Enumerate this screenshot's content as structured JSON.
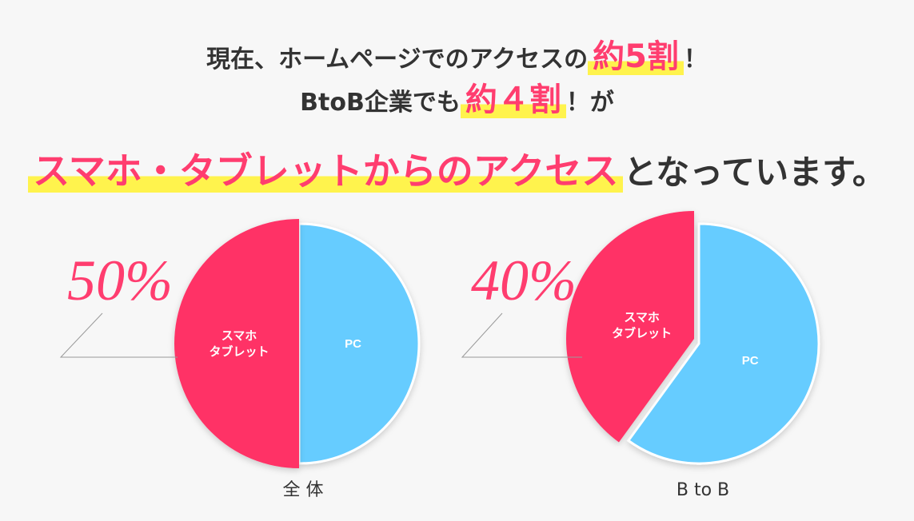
{
  "headline": {
    "line1_pre": "現在、ホームページでのアクセスの",
    "line1_em": "約5割",
    "line1_post": "！",
    "line2_pre": "BtoB企業でも",
    "line2_em": "約４割",
    "line2_post": "！が",
    "line3_em": "スマホ・タブレットからのアクセス",
    "line3_post": "となっています。"
  },
  "colors": {
    "mobile": "#ff3366",
    "pc": "#66ccff",
    "accent": "#ff3d6f",
    "highlight": "#fff34d"
  },
  "chart_data": [
    {
      "type": "pie",
      "title": "全 体",
      "percent_label": "50%",
      "slices": [
        {
          "name_lines": [
            "スマホ",
            "タブレット"
          ],
          "value": 50
        },
        {
          "name_lines": [
            "PC"
          ],
          "value": 50
        }
      ]
    },
    {
      "type": "pie",
      "title": "B to B",
      "percent_label": "40%",
      "slices": [
        {
          "name_lines": [
            "スマホ",
            "タブレット"
          ],
          "value": 40
        },
        {
          "name_lines": [
            "PC"
          ],
          "value": 60
        }
      ]
    }
  ]
}
